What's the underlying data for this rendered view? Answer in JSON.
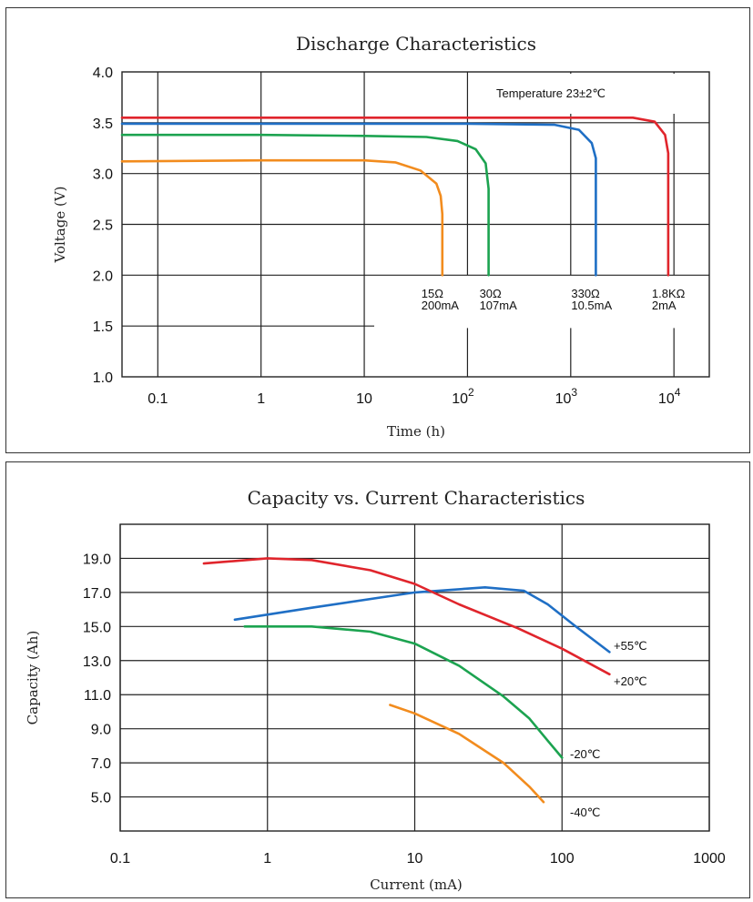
{
  "chart_data": [
    {
      "type": "line",
      "title": "Discharge Characteristics",
      "xlabel": "Time (h)",
      "ylabel": "Voltage (V)",
      "x_scale": "log",
      "xlim": [
        0.045,
        22000
      ],
      "ylim": [
        1.0,
        4.0
      ],
      "x_ticks": [
        {
          "value": 0.1,
          "label": "0.1"
        },
        {
          "value": 1,
          "label": "1"
        },
        {
          "value": 10,
          "label": "10"
        },
        {
          "value": 100,
          "label": "10",
          "sup": "2"
        },
        {
          "value": 1000,
          "label": "10",
          "sup": "3"
        },
        {
          "value": 10000,
          "label": "10",
          "sup": "4"
        }
      ],
      "y_ticks": [
        "1.0",
        "1.5",
        "2.0",
        "2.5",
        "3.0",
        "3.5",
        "4.0"
      ],
      "annotation": "Temperature 23±2℃",
      "grid": true,
      "series": [
        {
          "name": "15Ω 200mA",
          "label_lines": [
            "15Ω",
            "200mA"
          ],
          "color": "#f28c1e",
          "x": [
            0.045,
            1,
            10,
            20,
            35,
            50,
            55,
            57,
            57
          ],
          "y": [
            3.12,
            3.13,
            3.13,
            3.11,
            3.03,
            2.9,
            2.78,
            2.6,
            2.0
          ]
        },
        {
          "name": "30Ω 107mA",
          "label_lines": [
            "30Ω",
            "107mA"
          ],
          "color": "#1ca350",
          "x": [
            0.045,
            1,
            10,
            40,
            80,
            120,
            150,
            160,
            160
          ],
          "y": [
            3.38,
            3.38,
            3.37,
            3.36,
            3.32,
            3.24,
            3.1,
            2.85,
            2.0
          ]
        },
        {
          "name": "330Ω 10.5mA",
          "label_lines": [
            "330Ω",
            "10.5mA"
          ],
          "color": "#1f6fc5",
          "x": [
            0.045,
            10,
            100,
            700,
            1200,
            1600,
            1750,
            1750,
            1750
          ],
          "y": [
            3.49,
            3.49,
            3.49,
            3.48,
            3.43,
            3.3,
            3.15,
            2.6,
            2.0
          ]
        },
        {
          "name": "1.8KΩ 2mA",
          "label_lines": [
            "1.8KΩ",
            "2mA"
          ],
          "color": "#e0252c",
          "x": [
            0.045,
            10,
            100,
            1000,
            4000,
            6500,
            8200,
            8800,
            8800
          ],
          "y": [
            3.55,
            3.55,
            3.55,
            3.55,
            3.55,
            3.51,
            3.38,
            3.2,
            2.0
          ]
        }
      ]
    },
    {
      "type": "line",
      "title": "Capacity vs. Current Characteristics",
      "xlabel": "Current (mA)",
      "ylabel": "Capacity (Ah)",
      "x_scale": "log",
      "xlim": [
        0.1,
        1000
      ],
      "ylim": [
        3.0,
        21.0
      ],
      "x_ticks": [
        {
          "value": 0.1,
          "label": "0.1"
        },
        {
          "value": 1,
          "label": "1"
        },
        {
          "value": 10,
          "label": "10"
        },
        {
          "value": 100,
          "label": "100"
        },
        {
          "value": 1000,
          "label": "1000"
        }
      ],
      "y_ticks": [
        {
          "value": 5,
          "label": "5.0"
        },
        {
          "value": 7,
          "label": "7.0"
        },
        {
          "value": 9,
          "label": "9.0"
        },
        {
          "value": 11,
          "label": "11.0"
        },
        {
          "value": 13,
          "label": "13.0"
        },
        {
          "value": 15,
          "label": "15.0"
        },
        {
          "value": 17,
          "label": "17.0"
        },
        {
          "value": 19,
          "label": "19.0"
        }
      ],
      "grid": true,
      "series": [
        {
          "name": "+55℃",
          "color": "#1f6fc5",
          "x": [
            0.6,
            2,
            10,
            30,
            55,
            80,
            120,
            210
          ],
          "y": [
            15.4,
            16.1,
            17.0,
            17.3,
            17.1,
            16.3,
            15.1,
            13.5
          ]
        },
        {
          "name": "+20℃",
          "color": "#e0252c",
          "x": [
            0.37,
            1,
            2,
            5,
            10,
            20,
            50,
            100,
            210
          ],
          "y": [
            18.7,
            19.0,
            18.9,
            18.3,
            17.5,
            16.3,
            14.9,
            13.7,
            12.2
          ]
        },
        {
          "name": "-20℃",
          "color": "#1ca350",
          "x": [
            0.7,
            2,
            5,
            10,
            20,
            40,
            60,
            80,
            100
          ],
          "y": [
            15.0,
            15.0,
            14.7,
            14.0,
            12.7,
            10.9,
            9.6,
            8.3,
            7.3
          ]
        },
        {
          "name": "-40℃",
          "color": "#f28c1e",
          "x": [
            6.8,
            10,
            20,
            40,
            60,
            75
          ],
          "y": [
            10.4,
            9.9,
            8.7,
            7.0,
            5.6,
            4.7
          ]
        }
      ]
    }
  ]
}
